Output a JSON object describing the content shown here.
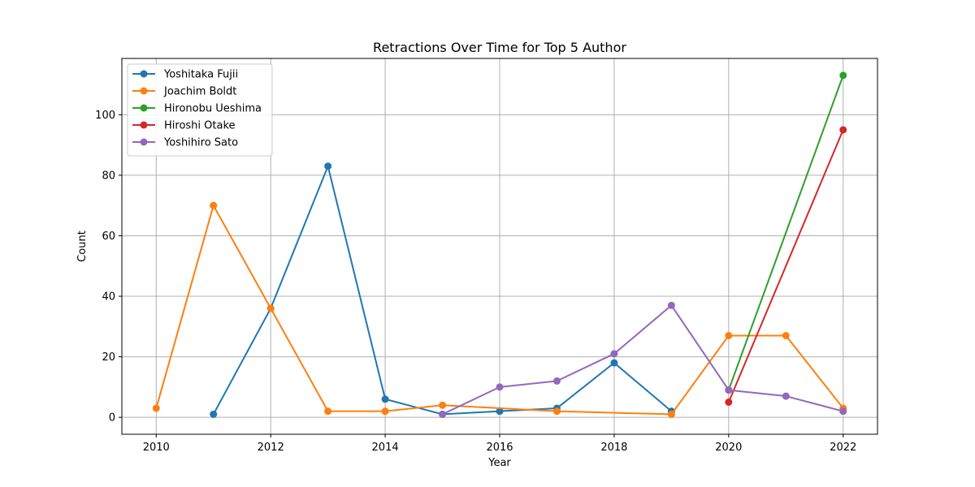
{
  "chart_data": {
    "type": "line",
    "title": "Retractions Over Time for Top 5 Author",
    "xlabel": "Year",
    "ylabel": "Count",
    "xlim": [
      2009.4,
      2022.6
    ],
    "ylim": [
      -5.6,
      118.6
    ],
    "xticks": [
      2010,
      2012,
      2014,
      2016,
      2018,
      2020,
      2022
    ],
    "yticks": [
      0,
      20,
      40,
      60,
      80,
      100
    ],
    "grid": true,
    "legend_position": "top-left",
    "series": [
      {
        "name": "Yoshitaka Fujii",
        "color": "#1f77b4",
        "points": [
          [
            2011,
            1
          ],
          [
            2012,
            36
          ],
          [
            2013,
            83
          ],
          [
            2014,
            6
          ],
          [
            2015,
            1
          ],
          [
            2016,
            2
          ],
          [
            2017,
            3
          ],
          [
            2018,
            18
          ],
          [
            2019,
            2
          ]
        ]
      },
      {
        "name": "Joachim Boldt",
        "color": "#ff7f0e",
        "points": [
          [
            2010,
            3
          ],
          [
            2011,
            70
          ],
          [
            2012,
            36
          ],
          [
            2013,
            2
          ],
          [
            2014,
            2
          ],
          [
            2015,
            4
          ],
          [
            2017,
            2
          ],
          [
            2019,
            1
          ],
          [
            2020,
            27
          ],
          [
            2021,
            27
          ],
          [
            2022,
            3
          ]
        ]
      },
      {
        "name": "Hironobu Ueshima",
        "color": "#2ca02c",
        "points": [
          [
            2020,
            9
          ],
          [
            2022,
            113
          ]
        ]
      },
      {
        "name": "Hiroshi Otake",
        "color": "#d62728",
        "points": [
          [
            2020,
            5
          ],
          [
            2022,
            95
          ]
        ]
      },
      {
        "name": "Yoshihiro Sato",
        "color": "#9467bd",
        "points": [
          [
            2015,
            1
          ],
          [
            2016,
            10
          ],
          [
            2017,
            12
          ],
          [
            2018,
            21
          ],
          [
            2019,
            37
          ],
          [
            2020,
            9
          ],
          [
            2021,
            7
          ],
          [
            2022,
            2
          ]
        ]
      }
    ]
  }
}
